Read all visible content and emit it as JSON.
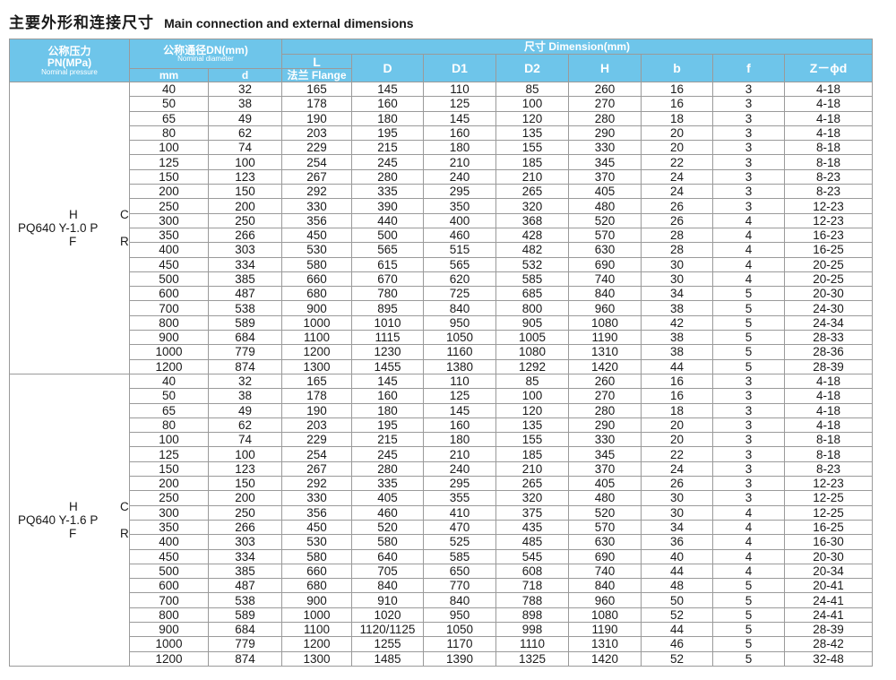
{
  "title": {
    "zh": "主要外形和连接尺寸",
    "en": "Main connection and external dimensions"
  },
  "header": {
    "pn_zh": "公称压力",
    "pn_mpa": "PN(MPa)",
    "pn_en": "Nominal pressure",
    "dn_zh": "公称通径DN(mm)",
    "dn_en": "Nominal diameter",
    "dimension": "尺寸 Dimension(mm)",
    "mm": "mm",
    "d": "d",
    "L": "L",
    "flange": "法兰 Flange",
    "D": "D",
    "D1": "D1",
    "D2": "D2",
    "H": "H",
    "b": "b",
    "f": "f",
    "z": "Z－ϕd"
  },
  "groups": [
    {
      "model": {
        "line1_a": "H",
        "line1_b": "C",
        "line2": "PQ640 Y-1.0 P",
        "line3_a": "F",
        "line3_b": "R"
      },
      "rows": [
        [
          "40",
          "32",
          "165",
          "145",
          "110",
          "85",
          "260",
          "16",
          "3",
          "4-18"
        ],
        [
          "50",
          "38",
          "178",
          "160",
          "125",
          "100",
          "270",
          "16",
          "3",
          "4-18"
        ],
        [
          "65",
          "49",
          "190",
          "180",
          "145",
          "120",
          "280",
          "18",
          "3",
          "4-18"
        ],
        [
          "80",
          "62",
          "203",
          "195",
          "160",
          "135",
          "290",
          "20",
          "3",
          "4-18"
        ],
        [
          "100",
          "74",
          "229",
          "215",
          "180",
          "155",
          "330",
          "20",
          "3",
          "8-18"
        ],
        [
          "125",
          "100",
          "254",
          "245",
          "210",
          "185",
          "345",
          "22",
          "3",
          "8-18"
        ],
        [
          "150",
          "123",
          "267",
          "280",
          "240",
          "210",
          "370",
          "24",
          "3",
          "8-23"
        ],
        [
          "200",
          "150",
          "292",
          "335",
          "295",
          "265",
          "405",
          "24",
          "3",
          "8-23"
        ],
        [
          "250",
          "200",
          "330",
          "390",
          "350",
          "320",
          "480",
          "26",
          "3",
          "12-23"
        ],
        [
          "300",
          "250",
          "356",
          "440",
          "400",
          "368",
          "520",
          "26",
          "4",
          "12-23"
        ],
        [
          "350",
          "266",
          "450",
          "500",
          "460",
          "428",
          "570",
          "28",
          "4",
          "16-23"
        ],
        [
          "400",
          "303",
          "530",
          "565",
          "515",
          "482",
          "630",
          "28",
          "4",
          "16-25"
        ],
        [
          "450",
          "334",
          "580",
          "615",
          "565",
          "532",
          "690",
          "30",
          "4",
          "20-25"
        ],
        [
          "500",
          "385",
          "660",
          "670",
          "620",
          "585",
          "740",
          "30",
          "4",
          "20-25"
        ],
        [
          "600",
          "487",
          "680",
          "780",
          "725",
          "685",
          "840",
          "34",
          "5",
          "20-30"
        ],
        [
          "700",
          "538",
          "900",
          "895",
          "840",
          "800",
          "960",
          "38",
          "5",
          "24-30"
        ],
        [
          "800",
          "589",
          "1000",
          "1010",
          "950",
          "905",
          "1080",
          "42",
          "5",
          "24-34"
        ],
        [
          "900",
          "684",
          "1100",
          "1115",
          "1050",
          "1005",
          "1190",
          "38",
          "5",
          "28-33"
        ],
        [
          "1000",
          "779",
          "1200",
          "1230",
          "1160",
          "1080",
          "1310",
          "38",
          "5",
          "28-36"
        ],
        [
          "1200",
          "874",
          "1300",
          "1455",
          "1380",
          "1292",
          "1420",
          "44",
          "5",
          "28-39"
        ]
      ]
    },
    {
      "model": {
        "line1_a": "H",
        "line1_b": "C",
        "line2": "PQ640 Y-1.6 P",
        "line3_a": "F",
        "line3_b": "R"
      },
      "rows": [
        [
          "40",
          "32",
          "165",
          "145",
          "110",
          "85",
          "260",
          "16",
          "3",
          "4-18"
        ],
        [
          "50",
          "38",
          "178",
          "160",
          "125",
          "100",
          "270",
          "16",
          "3",
          "4-18"
        ],
        [
          "65",
          "49",
          "190",
          "180",
          "145",
          "120",
          "280",
          "18",
          "3",
          "4-18"
        ],
        [
          "80",
          "62",
          "203",
          "195",
          "160",
          "135",
          "290",
          "20",
          "3",
          "4-18"
        ],
        [
          "100",
          "74",
          "229",
          "215",
          "180",
          "155",
          "330",
          "20",
          "3",
          "8-18"
        ],
        [
          "125",
          "100",
          "254",
          "245",
          "210",
          "185",
          "345",
          "22",
          "3",
          "8-18"
        ],
        [
          "150",
          "123",
          "267",
          "280",
          "240",
          "210",
          "370",
          "24",
          "3",
          "8-23"
        ],
        [
          "200",
          "150",
          "292",
          "335",
          "295",
          "265",
          "405",
          "26",
          "3",
          "12-23"
        ],
        [
          "250",
          "200",
          "330",
          "405",
          "355",
          "320",
          "480",
          "30",
          "3",
          "12-25"
        ],
        [
          "300",
          "250",
          "356",
          "460",
          "410",
          "375",
          "520",
          "30",
          "4",
          "12-25"
        ],
        [
          "350",
          "266",
          "450",
          "520",
          "470",
          "435",
          "570",
          "34",
          "4",
          "16-25"
        ],
        [
          "400",
          "303",
          "530",
          "580",
          "525",
          "485",
          "630",
          "36",
          "4",
          "16-30"
        ],
        [
          "450",
          "334",
          "580",
          "640",
          "585",
          "545",
          "690",
          "40",
          "4",
          "20-30"
        ],
        [
          "500",
          "385",
          "660",
          "705",
          "650",
          "608",
          "740",
          "44",
          "4",
          "20-34"
        ],
        [
          "600",
          "487",
          "680",
          "840",
          "770",
          "718",
          "840",
          "48",
          "5",
          "20-41"
        ],
        [
          "700",
          "538",
          "900",
          "910",
          "840",
          "788",
          "960",
          "50",
          "5",
          "24-41"
        ],
        [
          "800",
          "589",
          "1000",
          "1020",
          "950",
          "898",
          "1080",
          "52",
          "5",
          "24-41"
        ],
        [
          "900",
          "684",
          "1100",
          "1120/1125",
          "1050",
          "998",
          "1190",
          "44",
          "5",
          "28-39"
        ],
        [
          "1000",
          "779",
          "1200",
          "1255",
          "1170",
          "1110",
          "1310",
          "46",
          "5",
          "28-42"
        ],
        [
          "1200",
          "874",
          "1300",
          "1485",
          "1390",
          "1325",
          "1420",
          "52",
          "5",
          "32-48"
        ]
      ]
    }
  ]
}
